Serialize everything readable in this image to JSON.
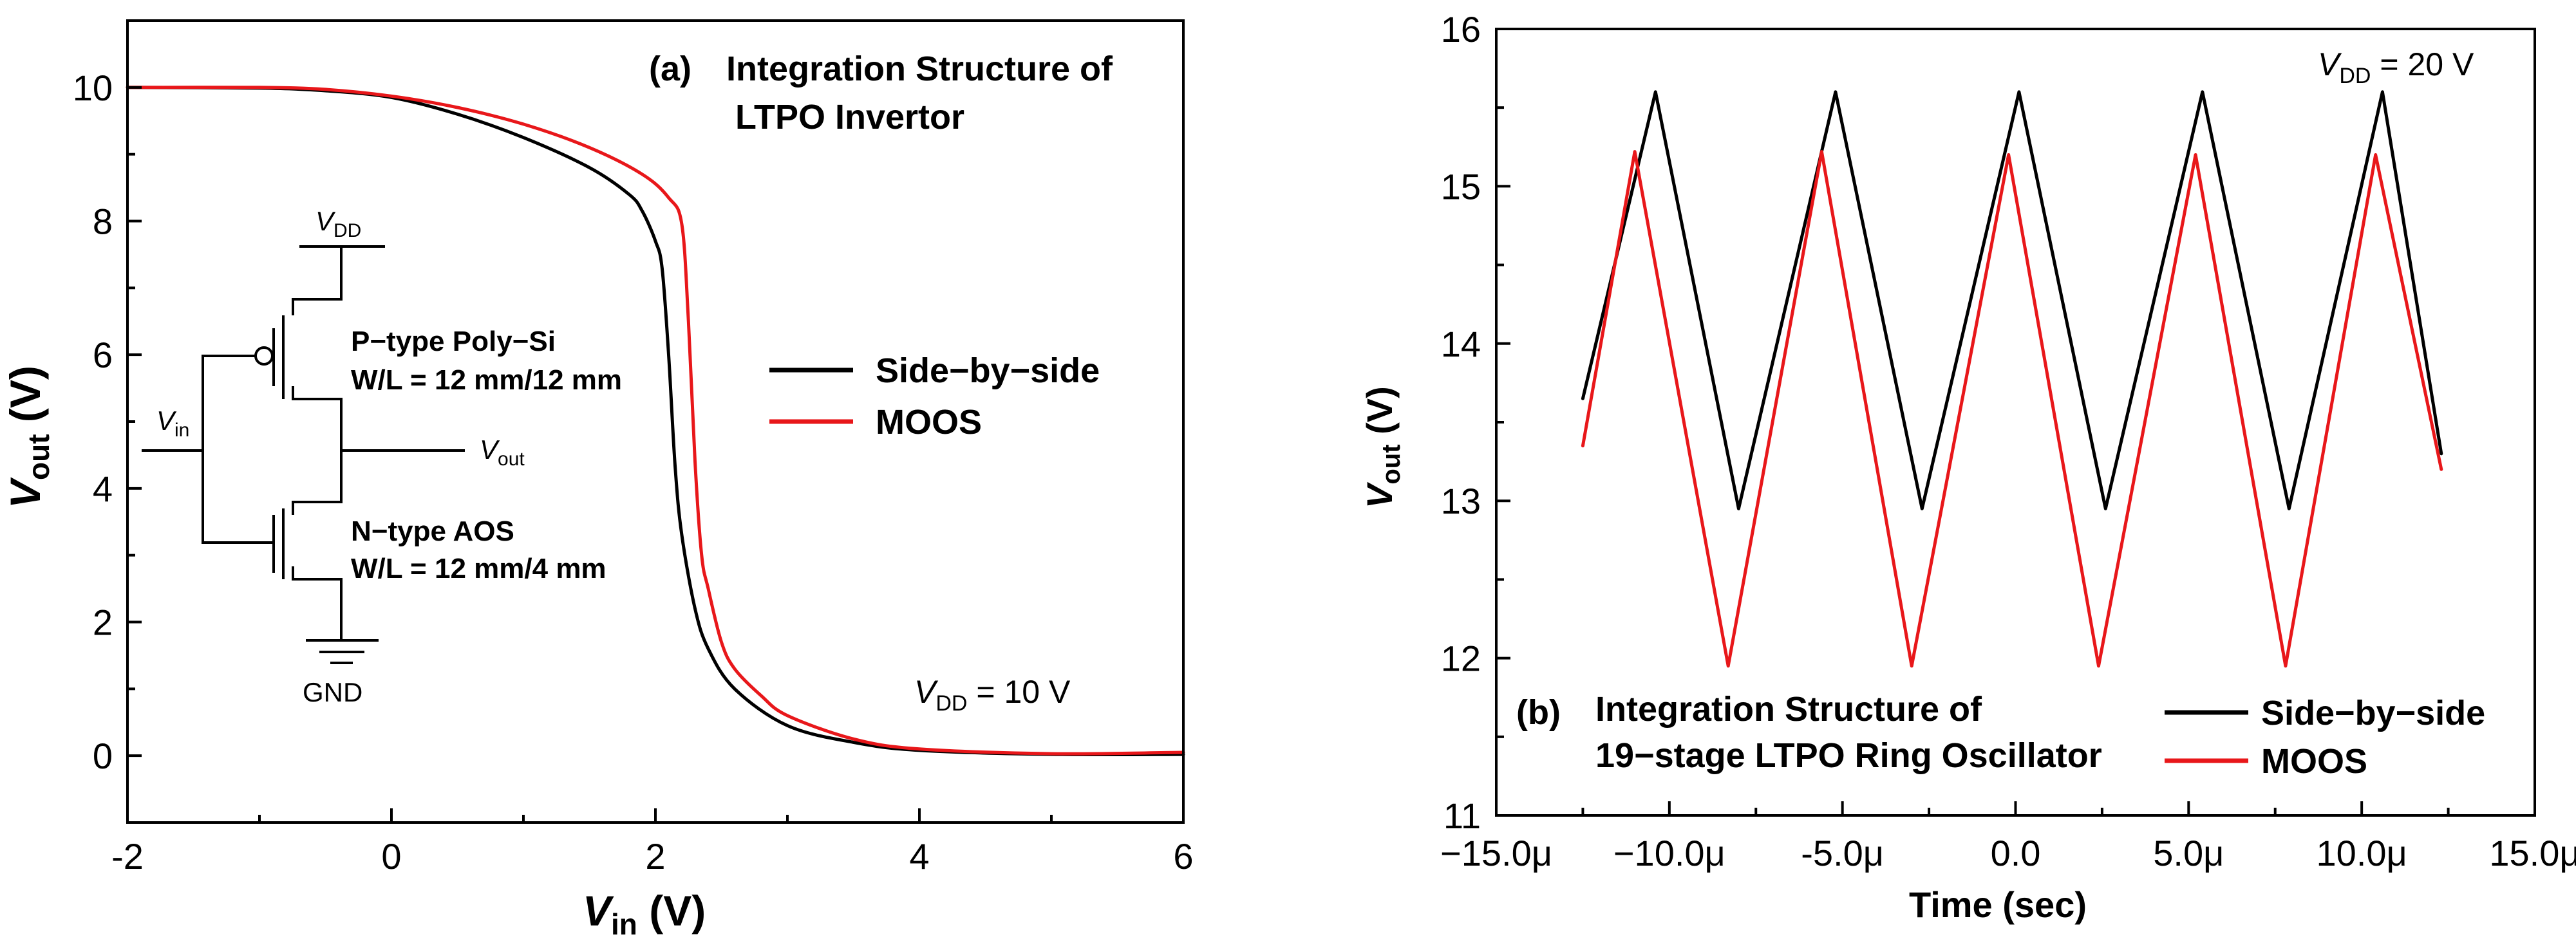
{
  "chart_data": [
    {
      "type": "line",
      "panel_label": "(a)",
      "title_line1": "Integration Structure of",
      "title_line2": "LTPO Invertor",
      "xlabel_symbol": "V",
      "xlabel_sub": "in",
      "xlabel_unit": " (V)",
      "ylabel_symbol": "V",
      "ylabel_sub": "out",
      "ylabel_unit": " (V)",
      "xlim": [
        -2,
        6
      ],
      "ylim": [
        -1,
        11
      ],
      "xticks": [
        -2,
        0,
        2,
        4,
        6
      ],
      "xtick_labels": [
        "-2",
        "0",
        "2",
        "4",
        "6"
      ],
      "yticks": [
        0,
        2,
        4,
        6,
        8,
        10
      ],
      "ytick_labels": [
        "0",
        "2",
        "4",
        "6",
        "8",
        "10"
      ],
      "annotation": {
        "symbol": "V",
        "sub": "DD",
        "text": " = 10 V"
      },
      "legend": {
        "placement": "center-right",
        "entries": [
          "Side−by−side",
          "MOOS"
        ]
      },
      "series": [
        {
          "name": "Side−by−side",
          "color": "#000000",
          "x": [
            -2,
            -1,
            -0.5,
            0,
            0.5,
            1,
            1.5,
            1.8,
            1.9,
            2.0,
            2.05,
            2.1,
            2.15,
            2.2,
            2.3,
            2.4,
            2.6,
            3.0,
            3.5,
            4.0,
            5.0,
            6.0
          ],
          "y": [
            10.0,
            9.99,
            9.95,
            9.85,
            9.6,
            9.25,
            8.8,
            8.4,
            8.15,
            7.7,
            7.3,
            6.0,
            4.3,
            3.3,
            2.2,
            1.6,
            1.0,
            0.45,
            0.2,
            0.08,
            0.02,
            0.02
          ]
        },
        {
          "name": "MOOS",
          "color": "#e8171a",
          "x": [
            -2,
            -1,
            -0.5,
            0,
            0.5,
            1,
            1.5,
            1.9,
            2.1,
            2.2,
            2.25,
            2.3,
            2.35,
            2.4,
            2.5,
            2.6,
            2.8,
            3.0,
            3.5,
            4.0,
            5.0,
            6.0
          ],
          "y": [
            10.0,
            10.0,
            9.97,
            9.87,
            9.7,
            9.45,
            9.1,
            8.7,
            8.35,
            7.95,
            6.5,
            4.4,
            3.0,
            2.5,
            1.7,
            1.3,
            0.9,
            0.6,
            0.25,
            0.1,
            0.03,
            0.05
          ]
        }
      ],
      "inset_circuit": {
        "vdd_symbol": "V",
        "vdd_sub": "DD",
        "vin_symbol": "V",
        "vin_sub": "in",
        "vout_symbol": "V",
        "vout_sub": "out",
        "ptype_line1": "P−type Poly−Si",
        "ptype_line2": "W/L = 12 mm/12 mm",
        "ntype_line1": "N−type AOS",
        "ntype_line2": "W/L = 12 mm/4 mm",
        "gnd": "GND"
      }
    },
    {
      "type": "line",
      "panel_label": "(b)",
      "title_line1": "Integration Structure of",
      "title_line2": "19−stage LTPO Ring Oscillator",
      "xlabel": "Time (sec)",
      "ylabel_symbol": "V",
      "ylabel_sub": "out",
      "ylabel_unit": " (V)",
      "xlim": [
        -15,
        15
      ],
      "ylim": [
        11,
        16
      ],
      "x_unit": "μ",
      "xticks": [
        -15,
        -10,
        -5,
        0,
        5,
        10,
        15
      ],
      "xtick_labels": [
        "−15.0μ",
        "−10.0μ",
        "-5.0μ",
        "0.0",
        "5.0μ",
        "10.0μ",
        "15.0μ"
      ],
      "yticks": [
        11,
        12,
        13,
        14,
        15,
        16
      ],
      "ytick_labels": [
        "11",
        "12",
        "13",
        "14",
        "15",
        "16"
      ],
      "annotation": {
        "symbol": "V",
        "sub": "DD",
        "text": " = 20 V"
      },
      "legend": {
        "placement": "bottom-right",
        "entries": [
          "Side−by−side",
          "MOOS"
        ]
      },
      "series": [
        {
          "name": "Side−by−side",
          "color": "#000000",
          "x": [
            -12.5,
            -10.4,
            -8.0,
            -5.2,
            -2.7,
            0.1,
            2.6,
            5.4,
            7.9,
            10.6,
            12.3
          ],
          "y": [
            13.65,
            15.6,
            12.95,
            15.6,
            12.95,
            15.6,
            12.95,
            15.6,
            12.95,
            15.6,
            13.3
          ]
        },
        {
          "name": "MOOS",
          "color": "#e8171a",
          "x": [
            -12.5,
            -11.0,
            -8.3,
            -5.6,
            -3.0,
            -0.2,
            2.4,
            5.2,
            7.8,
            10.4,
            12.3
          ],
          "y": [
            13.35,
            15.22,
            11.95,
            15.22,
            11.95,
            15.2,
            11.95,
            15.2,
            11.95,
            15.2,
            13.2
          ]
        }
      ]
    }
  ]
}
